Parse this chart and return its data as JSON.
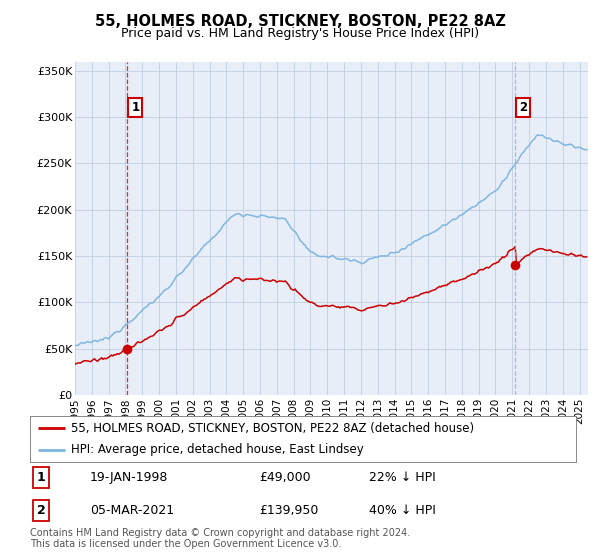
{
  "title": "55, HOLMES ROAD, STICKNEY, BOSTON, PE22 8AZ",
  "subtitle": "Price paid vs. HM Land Registry's House Price Index (HPI)",
  "legend_line1": "55, HOLMES ROAD, STICKNEY, BOSTON, PE22 8AZ (detached house)",
  "legend_line2": "HPI: Average price, detached house, East Lindsey",
  "annotation1_label": "1",
  "annotation1_date": "19-JAN-1998",
  "annotation1_price": "£49,000",
  "annotation1_hpi": "22% ↓ HPI",
  "annotation2_label": "2",
  "annotation2_date": "05-MAR-2021",
  "annotation2_price": "£139,950",
  "annotation2_hpi": "40% ↓ HPI",
  "footer": "Contains HM Land Registry data © Crown copyright and database right 2024.\nThis data is licensed under the Open Government Licence v3.0.",
  "sale1_year": 1998.1,
  "sale1_price": 49000,
  "sale2_year": 2021.17,
  "sale2_price": 139950,
  "hpi_color": "#7ab4e0",
  "sale_color": "#cc0000",
  "vline1_color": "#cc0000",
  "vline2_color": "#aaaaaa",
  "plot_bg_color": "#e8eef8",
  "ylim": [
    0,
    360000
  ],
  "xlim_start": 1995.0,
  "xlim_end": 2025.5
}
